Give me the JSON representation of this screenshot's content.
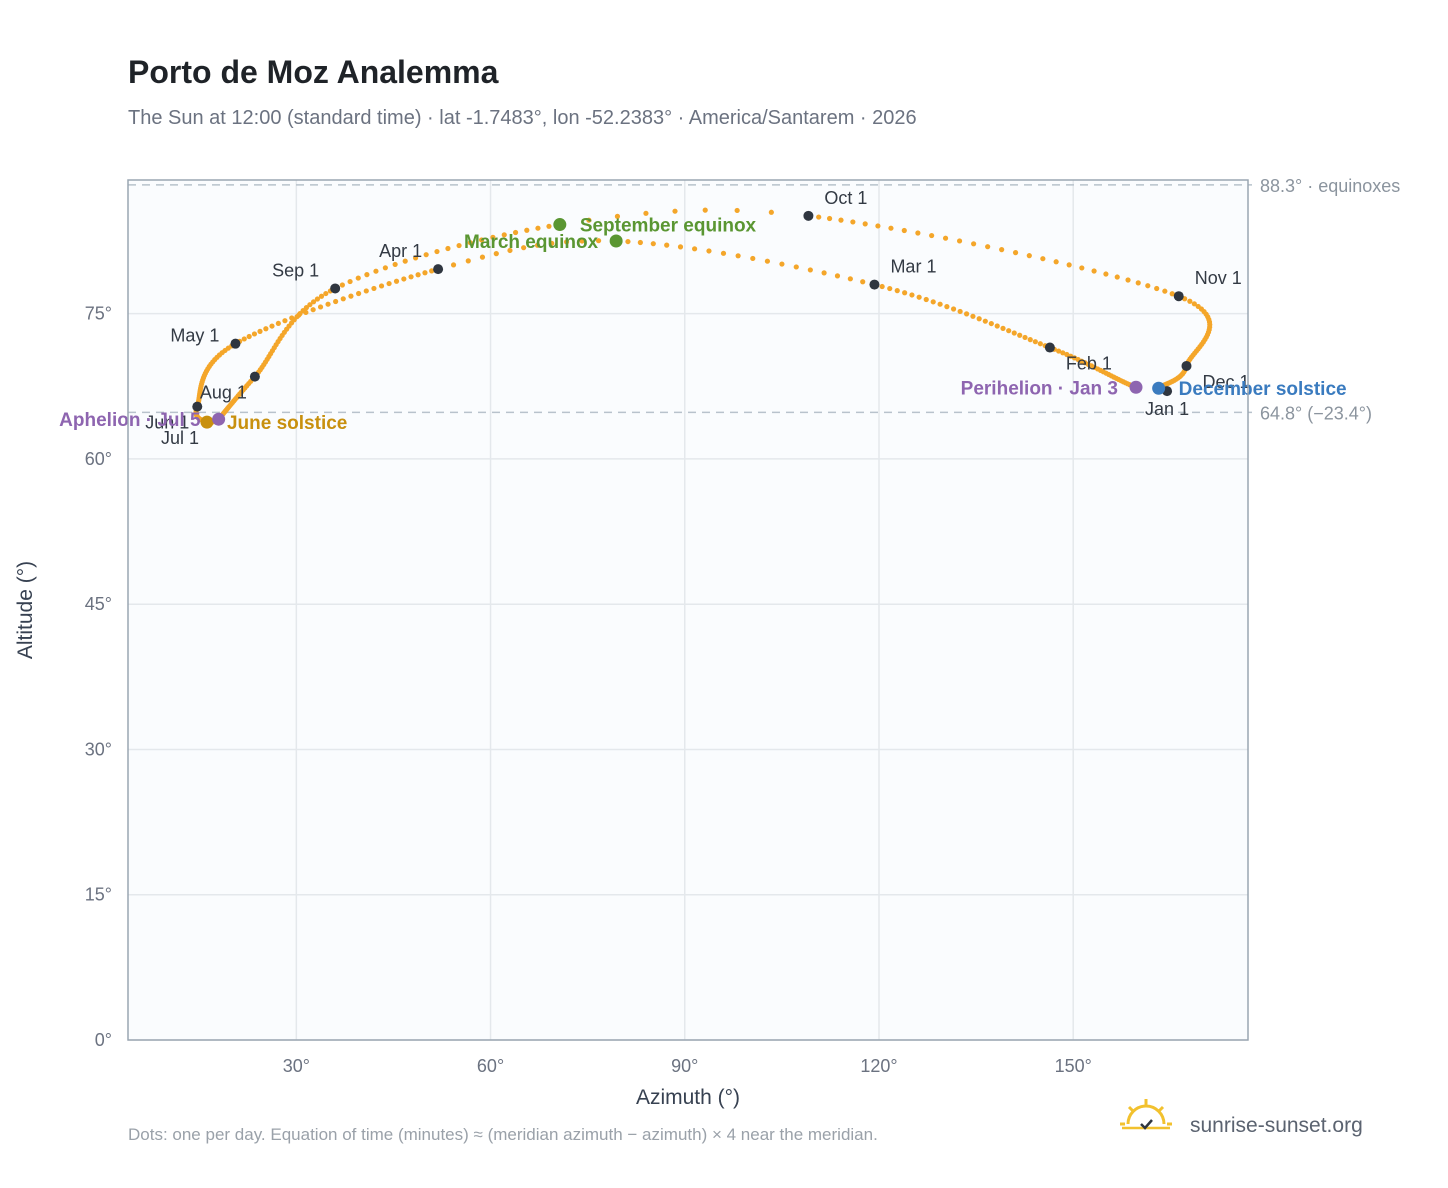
{
  "header": {
    "title": "Porto de Moz Analemma",
    "subtitle": "The Sun at 12:00 (standard time) · lat -1.7483°, lon -52.2383° · America/Santarem · 2026"
  },
  "footer": {
    "note": "Dots: one per day. Equation of time (minutes) ≈ (meridian azimuth − azimuth) × 4 near the meridian.",
    "brand": "sunrise-sunset.org",
    "brand_icon": "sun-logo-icon"
  },
  "colors": {
    "path": "#f4a62a",
    "month_dot": "#2f3640",
    "equinox": "#5a9632",
    "june_solstice": "#c8900e",
    "december_solstice": "#3a7bbf",
    "aphelion": "#8e65b0",
    "perihelion": "#8e65b0",
    "reference_line": "#b8c2cc",
    "plot_bg": "#fafcfe",
    "grid": "#e4e8ec",
    "frame": "#9aa6b2"
  },
  "chart_data": {
    "type": "scatter",
    "xlabel": "Azimuth (°)",
    "ylabel": "Altitude (°)",
    "xlim": [
      4,
      177
    ],
    "ylim": [
      0,
      88.8
    ],
    "x_ticks": [
      30,
      60,
      90,
      120,
      150
    ],
    "x_tick_labels": [
      "30°",
      "60°",
      "90°",
      "120°",
      "150°"
    ],
    "y_ticks": [
      0,
      15,
      30,
      45,
      60,
      75
    ],
    "y_tick_labels": [
      "0°",
      "15°",
      "30°",
      "45°",
      "60°",
      "75°"
    ],
    "grid": true,
    "reference_lines": [
      {
        "altitude": 88.3,
        "label": "88.3° · equinoxes"
      },
      {
        "altitude": 64.8,
        "label": "64.8° (−23.4°)"
      }
    ],
    "path_anchors": [
      {
        "day": 1,
        "azimuth": 164.5,
        "altitude": 67.0
      },
      {
        "day": 3,
        "azimuth": 159.7,
        "altitude": 67.4
      },
      {
        "day": 32,
        "azimuth": 146.4,
        "altitude": 71.5
      },
      {
        "day": 60,
        "azimuth": 119.3,
        "altitude": 78.0
      },
      {
        "day": 79,
        "azimuth": 79.4,
        "altitude": 82.5
      },
      {
        "day": 91,
        "azimuth": 51.9,
        "altitude": 79.6
      },
      {
        "day": 121,
        "azimuth": 20.6,
        "altitude": 71.9
      },
      {
        "day": 152,
        "azimuth": 14.7,
        "altitude": 65.4
      },
      {
        "day": 172,
        "azimuth": 16.2,
        "altitude": 63.8
      },
      {
        "day": 182,
        "azimuth": 18.0,
        "altitude": 64.1
      },
      {
        "day": 186,
        "azimuth": 18.0,
        "altitude": 64.1
      },
      {
        "day": 213,
        "azimuth": 23.6,
        "altitude": 68.5
      },
      {
        "day": 244,
        "azimuth": 36.0,
        "altitude": 77.6
      },
      {
        "day": 266,
        "azimuth": 70.7,
        "altitude": 84.2
      },
      {
        "day": 274,
        "azimuth": 109.1,
        "altitude": 85.1
      },
      {
        "day": 305,
        "azimuth": 166.3,
        "altitude": 76.8
      },
      {
        "day": 335,
        "azimuth": 167.5,
        "altitude": 69.6
      },
      {
        "day": 355,
        "azimuth": 163.2,
        "altitude": 67.3
      },
      {
        "day": 366,
        "azimuth": 164.5,
        "altitude": 67.0
      }
    ],
    "month_markers": [
      {
        "label": "Jan 1",
        "azimuth": 164.5,
        "altitude": 67.0,
        "anchor": "below"
      },
      {
        "label": "Feb 1",
        "azimuth": 146.4,
        "altitude": 71.5,
        "anchor": "below-right"
      },
      {
        "label": "Mar 1",
        "azimuth": 119.3,
        "altitude": 78.0,
        "anchor": "above-right"
      },
      {
        "label": "Apr 1",
        "azimuth": 51.9,
        "altitude": 79.6,
        "anchor": "above-left"
      },
      {
        "label": "May 1",
        "azimuth": 20.6,
        "altitude": 71.9,
        "anchor": "left"
      },
      {
        "label": "Jun 1",
        "azimuth": 14.7,
        "altitude": 65.4,
        "anchor": "below-left"
      },
      {
        "label": "Jul 1",
        "azimuth": 16.2,
        "altitude": 63.8,
        "anchor": "below-left"
      },
      {
        "label": "Aug 1",
        "azimuth": 23.6,
        "altitude": 68.5,
        "anchor": "below-left"
      },
      {
        "label": "Sep 1",
        "azimuth": 36.0,
        "altitude": 77.6,
        "anchor": "above-left"
      },
      {
        "label": "Oct 1",
        "azimuth": 109.1,
        "altitude": 85.1,
        "anchor": "above-right"
      },
      {
        "label": "Nov 1",
        "azimuth": 166.3,
        "altitude": 76.8,
        "anchor": "above-right"
      },
      {
        "label": "Dec 1",
        "azimuth": 167.5,
        "altitude": 69.6,
        "anchor": "below-right"
      }
    ],
    "events": [
      {
        "label": "March equinox",
        "azimuth": 79.4,
        "altitude": 82.5,
        "color": "#5a9632",
        "side": "left"
      },
      {
        "label": "September equinox",
        "azimuth": 70.7,
        "altitude": 84.2,
        "color": "#5a9632",
        "side": "right"
      },
      {
        "label": "June solstice",
        "azimuth": 16.2,
        "altitude": 63.8,
        "color": "#c8900e",
        "side": "right"
      },
      {
        "label": "December solstice",
        "azimuth": 163.2,
        "altitude": 67.3,
        "color": "#3a7bbf",
        "side": "right"
      },
      {
        "label": "Aphelion · Jul 5",
        "azimuth": 18.0,
        "altitude": 64.1,
        "color": "#8e65b0",
        "side": "left"
      },
      {
        "label": "Perihelion · Jan 3",
        "azimuth": 159.7,
        "altitude": 67.4,
        "color": "#8e65b0",
        "side": "left"
      }
    ]
  }
}
